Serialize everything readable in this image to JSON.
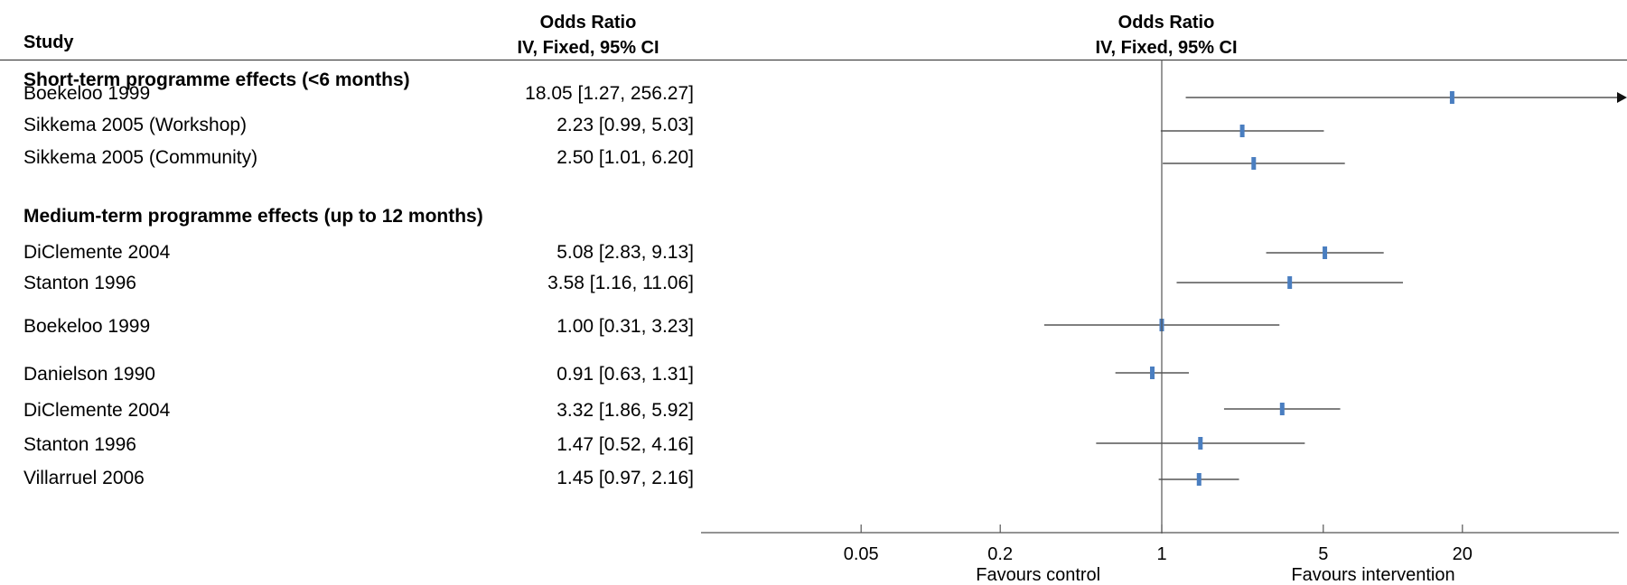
{
  "chart_data": {
    "type": "forest",
    "headers": {
      "study": "Study",
      "effect_column": [
        "Odds Ratio",
        "IV, Fixed, 95% CI"
      ],
      "plot_column": [
        "Odds Ratio",
        "IV, Fixed, 95% CI"
      ]
    },
    "x_scale": "log",
    "xlim": [
      0.0385,
      22.5
    ],
    "x_ticks": [
      {
        "value": 0.05,
        "label": "0.05"
      },
      {
        "value": 0.2,
        "label": "0.2"
      },
      {
        "value": 1,
        "label": "1"
      },
      {
        "value": 5,
        "label": "5"
      },
      {
        "value": 20,
        "label": "20"
      }
    ],
    "favours_left": "Favours control",
    "favours_right": "Favours intervention",
    "groups": [
      {
        "title": "Short-term programme effects (<6 months)",
        "studies": [
          {
            "study": "Boekeloo 1999",
            "or": 18.05,
            "lo": 1.27,
            "hi": 256.27,
            "ci_text": "18.05 [1.27, 256.27]"
          },
          {
            "study": "Sikkema 2005 (Workshop)",
            "or": 2.23,
            "lo": 0.99,
            "hi": 5.03,
            "ci_text": "2.23 [0.99, 5.03]"
          },
          {
            "study": "Sikkema 2005 (Community)",
            "or": 2.5,
            "lo": 1.01,
            "hi": 6.2,
            "ci_text": "2.50 [1.01, 6.20]"
          }
        ]
      },
      {
        "title": "Medium-term programme effects (up to 12 months)",
        "studies": [
          {
            "study": "DiClemente 2004",
            "or": 5.08,
            "lo": 2.83,
            "hi": 9.13,
            "ci_text": "5.08 [2.83, 9.13]"
          },
          {
            "study": "Stanton 1996",
            "or": 3.58,
            "lo": 1.16,
            "hi": 11.06,
            "ci_text": "3.58 [1.16, 11.06]"
          },
          {
            "study": "Boekeloo 1999",
            "or": 1.0,
            "lo": 0.31,
            "hi": 3.23,
            "ci_text": "1.00 [0.31, 3.23]"
          },
          {
            "study": "Danielson 1990",
            "or": 0.91,
            "lo": 0.63,
            "hi": 1.31,
            "ci_text": "0.91 [0.63, 1.31]"
          },
          {
            "study": "DiClemente 2004",
            "or": 3.32,
            "lo": 1.86,
            "hi": 5.92,
            "ci_text": "3.32 [1.86, 5.92]"
          },
          {
            "study": "Stanton 1996",
            "or": 1.47,
            "lo": 0.52,
            "hi": 4.16,
            "ci_text": "1.47 [0.52, 4.16]"
          },
          {
            "study": "Villarruel 2006",
            "or": 1.45,
            "lo": 0.97,
            "hi": 2.16,
            "ci_text": "1.45 [0.97, 2.16]"
          }
        ]
      }
    ],
    "colors": {
      "marker": "#4a7ec0",
      "line": "#333333",
      "axis": "#555555"
    }
  }
}
